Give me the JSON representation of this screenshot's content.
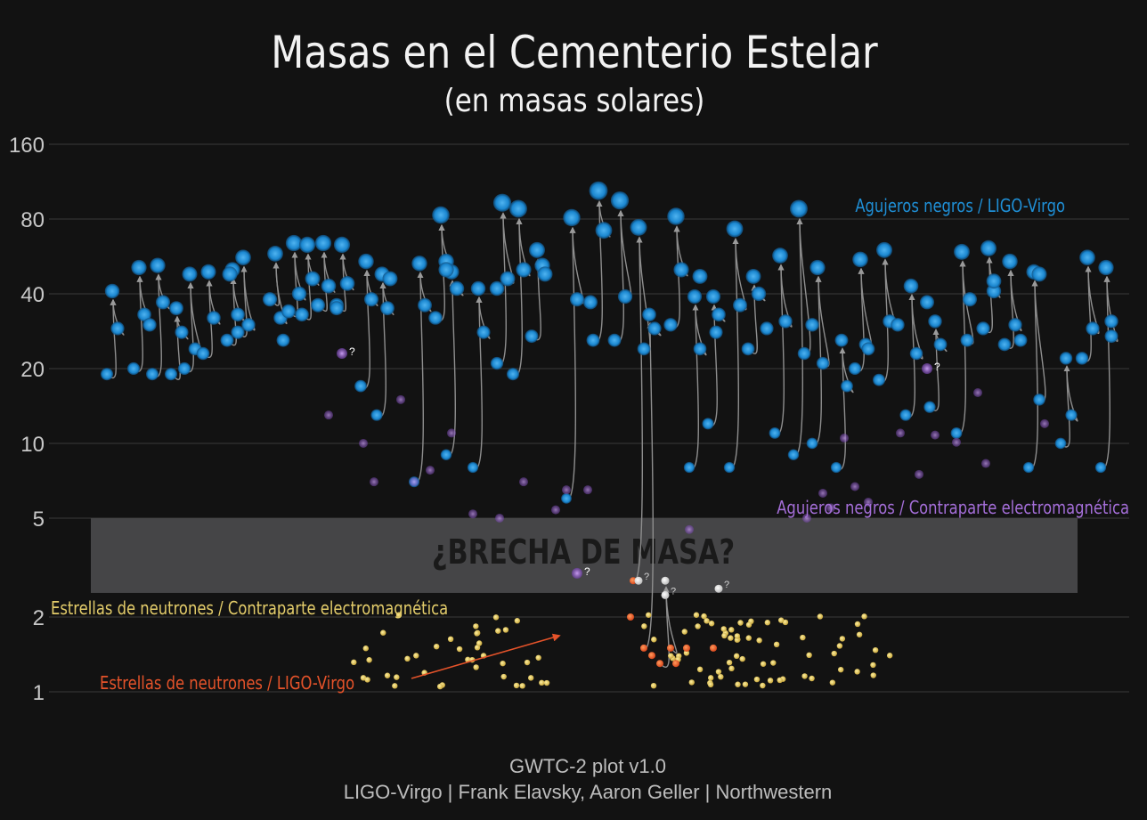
{
  "chart_data": {
    "type": "scatter",
    "title": "Masas en el Cementerio Estelar",
    "subtitle": "(en masas solares)",
    "xlabel": "",
    "ylabel": "",
    "y_scale": "log2",
    "ylim": [
      1,
      160
    ],
    "yticks": [
      1,
      2,
      5,
      10,
      20,
      40,
      80,
      160
    ],
    "ytick_labels": [
      "1",
      "2",
      "5",
      "10",
      "20",
      "40",
      "80",
      "160"
    ],
    "grid": true,
    "mass_gap": {
      "range": [
        2.5,
        5
      ],
      "label": "¿BRECHA DE MASA?"
    },
    "legend": [
      {
        "name": "Agujeros negros / LIGO-Virgo",
        "color": "#1f8fd6"
      },
      {
        "name": "Agujeros negros / Contraparte electromagnética",
        "color": "#a46ed8"
      },
      {
        "name": "Estrellas de neutrones / Contraparte electromagnética",
        "color": "#e3cc6a"
      },
      {
        "name": "Estrellas de neutrones / LIGO-Virgo",
        "color": "#e5532a"
      }
    ],
    "uncertain_marker": "?",
    "mergers": [
      {
        "x": 6,
        "m1": 29,
        "m2": 19,
        "r": 41
      },
      {
        "x": 16,
        "m1": 33,
        "m2": 20,
        "r": 51
      },
      {
        "x": 23,
        "m1": 37,
        "m2": 19,
        "r": 52
      },
      {
        "x": 30,
        "m1": 28,
        "m2": 19,
        "r": 35
      },
      {
        "x": 35,
        "m1": 24,
        "m2": 20,
        "r": 48
      },
      {
        "x": 42,
        "m1": 32,
        "m2": 23,
        "r": 49
      },
      {
        "x": 51,
        "m1": 33,
        "m2": 26,
        "r": 50
      },
      {
        "x": 55,
        "m1": 30,
        "m2": 28,
        "r": 56
      },
      {
        "x": 67,
        "m1": 32,
        "m2": 38,
        "r": 58
      },
      {
        "x": 74,
        "m1": 40,
        "m2": 34,
        "r": 64
      },
      {
        "x": 79,
        "m1": 46,
        "m2": 33,
        "r": 63
      },
      {
        "x": 85,
        "m1": 43,
        "m2": 36,
        "r": 64
      },
      {
        "x": 92,
        "m1": 44,
        "m2": 36,
        "r": 63
      },
      {
        "x": 101,
        "m1": 38,
        "m2": 17,
        "r": 54
      },
      {
        "x": 107,
        "m1": 35,
        "m2": 13,
        "r": 48
      },
      {
        "x": 121,
        "m1": 36,
        "m2": 7,
        "r": 53
      },
      {
        "x": 129,
        "m1": 54,
        "m2": 32,
        "r": 83
      },
      {
        "x": 133,
        "m1": 42,
        "m2": 9,
        "r": 49
      },
      {
        "x": 143,
        "m1": 28,
        "m2": 8,
        "r": 42
      },
      {
        "x": 152,
        "m1": 46,
        "m2": 21,
        "r": 93
      },
      {
        "x": 158,
        "m1": 50,
        "m2": 19,
        "r": 88
      },
      {
        "x": 165,
        "m1": 52,
        "m2": 27,
        "r": 60
      },
      {
        "x": 178,
        "m1": 38,
        "m2": 6,
        "r": 81
      },
      {
        "x": 188,
        "m1": 72,
        "m2": 26,
        "r": 104
      },
      {
        "x": 196,
        "m1": 39,
        "m2": 26,
        "r": 95
      },
      {
        "x": 203,
        "m1": 24,
        "m2": 2.8,
        "r": 74
      },
      {
        "x": 207,
        "m1": 29,
        "m2": 1.5,
        "r": 33
      },
      {
        "x": 213,
        "m1": 1.5,
        "m2": 1.3,
        "r": 2.8
      },
      {
        "x": 217,
        "m1": 50,
        "m2": 30,
        "r": 82
      },
      {
        "x": 224,
        "m1": 24,
        "m2": 8,
        "r": 39
      },
      {
        "x": 231,
        "m1": 33,
        "m2": 12,
        "r": 39
      },
      {
        "x": 239,
        "m1": 36,
        "m2": 8,
        "r": 73
      },
      {
        "x": 246,
        "m1": 40,
        "m2": 24,
        "r": 47
      },
      {
        "x": 256,
        "m1": 31,
        "m2": 11,
        "r": 57
      },
      {
        "x": 263,
        "m1": 23,
        "m2": 9,
        "r": 88
      },
      {
        "x": 270,
        "m1": 21,
        "m2": 10,
        "r": 51
      },
      {
        "x": 279,
        "m1": 17,
        "m2": 8,
        "r": 26
      },
      {
        "x": 286,
        "m1": 25,
        "m2": 20,
        "r": 55
      },
      {
        "x": 295,
        "m1": 31,
        "m2": 18,
        "r": 60
      },
      {
        "x": 305,
        "m1": 23,
        "m2": 13,
        "r": 43
      },
      {
        "x": 314,
        "m1": 25,
        "m2": 14,
        "r": 31
      },
      {
        "x": 324,
        "m1": 26,
        "m2": 11,
        "r": 59
      },
      {
        "x": 334,
        "m1": 41,
        "m2": 29,
        "r": 61
      },
      {
        "x": 342,
        "m1": 30,
        "m2": 25,
        "r": 54
      },
      {
        "x": 351,
        "m1": 15,
        "m2": 8,
        "r": 49
      },
      {
        "x": 363,
        "m1": 13,
        "m2": 10,
        "r": 22
      },
      {
        "x": 371,
        "m1": 29,
        "m2": 22,
        "r": 56
      },
      {
        "x": 378,
        "m1": 27,
        "m2": 8,
        "r": 51
      }
    ],
    "lone_bh_points": [
      {
        "x": 20,
        "m": 30
      },
      {
        "x": 50,
        "m": 48
      },
      {
        "x": 70,
        "m": 26
      },
      {
        "x": 90,
        "m": 35
      },
      {
        "x": 110,
        "m": 46
      },
      {
        "x": 131,
        "m": 50
      },
      {
        "x": 150,
        "m": 42
      },
      {
        "x": 168,
        "m": 48
      },
      {
        "x": 185,
        "m": 37
      },
      {
        "x": 226,
        "m": 47
      },
      {
        "x": 232,
        "m": 28
      },
      {
        "x": 251,
        "m": 29
      },
      {
        "x": 268,
        "m": 30
      },
      {
        "x": 289,
        "m": 24
      },
      {
        "x": 300,
        "m": 30
      },
      {
        "x": 311,
        "m": 37
      },
      {
        "x": 327,
        "m": 38
      },
      {
        "x": 336,
        "m": 45
      },
      {
        "x": 346,
        "m": 26
      },
      {
        "x": 353,
        "m": 48
      },
      {
        "x": 380,
        "m": 31
      }
    ],
    "bh_em_candidates": [
      {
        "x": 92,
        "m": 23,
        "uncertain": true
      },
      {
        "x": 311,
        "m": 20,
        "uncertain": true
      },
      {
        "x": 180,
        "m": 3,
        "uncertain": true
      },
      {
        "x": 87,
        "m": 13
      },
      {
        "x": 100,
        "m": 10
      },
      {
        "x": 114,
        "m": 15
      },
      {
        "x": 133,
        "m": 11
      },
      {
        "x": 104,
        "m": 7
      },
      {
        "x": 119,
        "m": 7
      },
      {
        "x": 125,
        "m": 7.8
      },
      {
        "x": 141,
        "m": 5.2
      },
      {
        "x": 151,
        "m": 5
      },
      {
        "x": 160,
        "m": 7
      },
      {
        "x": 172,
        "m": 5.4
      },
      {
        "x": 176,
        "m": 6.5
      },
      {
        "x": 184,
        "m": 6.5
      },
      {
        "x": 222,
        "m": 4.5
      },
      {
        "x": 266,
        "m": 5
      },
      {
        "x": 272,
        "m": 6.3
      },
      {
        "x": 275,
        "m": 5.5
      },
      {
        "x": 280,
        "m": 10.5
      },
      {
        "x": 284,
        "m": 6.7
      },
      {
        "x": 289,
        "m": 5.8
      },
      {
        "x": 301,
        "m": 11
      },
      {
        "x": 308,
        "m": 7.5
      },
      {
        "x": 314,
        "m": 10.8
      },
      {
        "x": 322,
        "m": 10.1
      },
      {
        "x": 330,
        "m": 16
      },
      {
        "x": 333,
        "m": 8.3
      },
      {
        "x": 355,
        "m": 12
      }
    ],
    "ns_em_count": 110,
    "ns_ligo_points": [
      {
        "x": 200,
        "m": 2.0
      },
      {
        "x": 208,
        "m": 1.4
      },
      {
        "x": 217,
        "m": 1.3
      },
      {
        "x": 221,
        "m": 1.5
      },
      {
        "x": 231,
        "m": 1.5
      }
    ],
    "gap_objects": [
      {
        "x": 203,
        "m": 2.8,
        "uncertain": true
      },
      {
        "x": 213,
        "m": 2.45,
        "uncertain": true
      },
      {
        "x": 233,
        "m": 2.6,
        "uncertain": true
      }
    ],
    "footer": {
      "line1": "GWTC-2 plot v1.0",
      "line2": "LIGO-Virgo | Frank Elavsky, Aaron Geller | Northwestern"
    }
  }
}
